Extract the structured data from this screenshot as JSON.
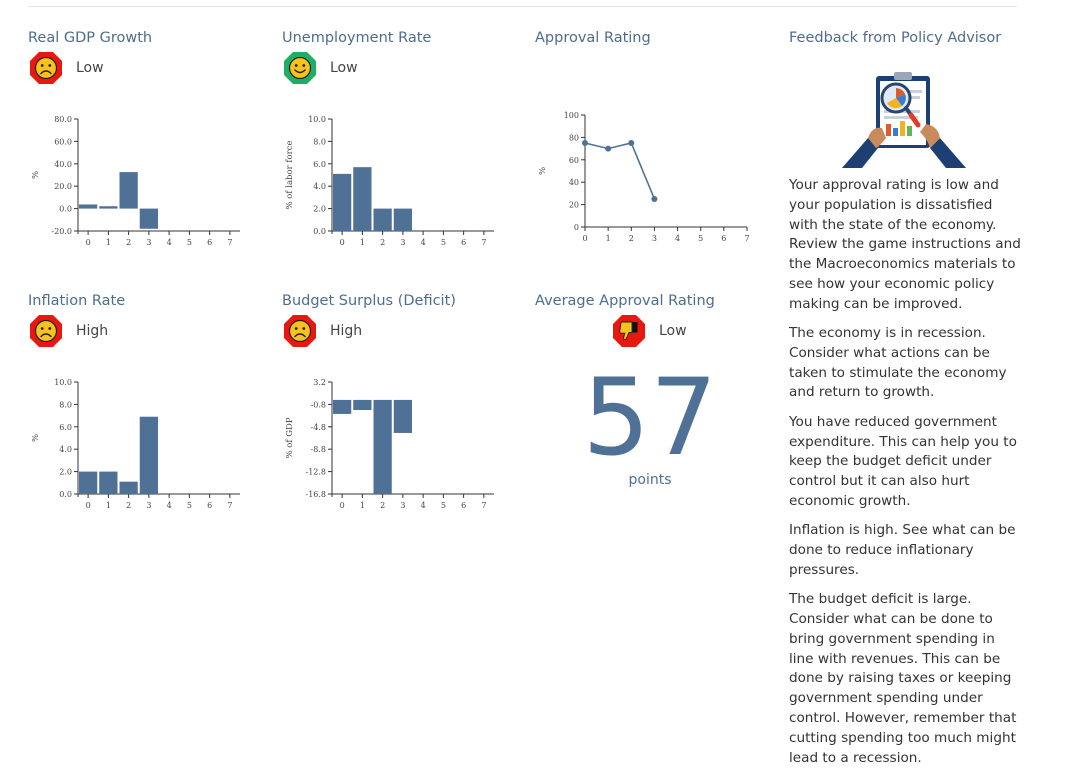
{
  "panels": {
    "gdp": {
      "title": "Real GDP Growth",
      "status": "Low",
      "face": "sad"
    },
    "unemployment": {
      "title": "Unemployment Rate",
      "status": "Low",
      "face": "happy"
    },
    "approval": {
      "title": "Approval Rating"
    },
    "inflation": {
      "title": "Inflation Rate",
      "status": "High",
      "face": "sad"
    },
    "budget": {
      "title": "Budget Surplus (Deficit)",
      "status": "High",
      "face": "sad"
    },
    "avg_approval": {
      "title": "Average Approval Rating",
      "status": "Low",
      "score": "57",
      "unit": "points"
    }
  },
  "feedback": {
    "title": "Feedback from Policy Advisor",
    "paragraphs": [
      "Your approval rating is low and your population is dissatisfied with the state of the economy. Review the game instructions and the Macroeconomics materials to see how your economic policy making can be improved.",
      "The economy is in recession. Consider what actions can be taken to stimulate the economy and return to growth.",
      "You have reduced government expenditure. This can help you to keep the budget deficit under control but it can also hurt economic growth.",
      "Inflation is high. See what can be done to reduce inflationary pressures.",
      "The budget deficit is large. Consider what can be done to bring government spending in line with revenues. This can be done by raising taxes or keeping government spending under control. However, remember that cutting spending too much might lead to a recession."
    ]
  },
  "colors": {
    "bar": "#4f7196",
    "title": "#4d6d8f",
    "sad_bg": "#e8170f",
    "happy_bg": "#1fae66",
    "face": "#f7c21b"
  },
  "icons": {
    "sad": "sad-face-icon",
    "happy": "happy-face-icon",
    "thumbs_down": "thumbs-down-icon",
    "advisor": "clipboard-magnifier-illustration"
  },
  "chart_data": [
    {
      "id": "gdp",
      "type": "bar",
      "x": [
        0,
        1,
        2,
        3,
        4,
        5,
        6,
        7
      ],
      "values": [
        3.7,
        2.1,
        32.6,
        -18.0,
        null,
        null,
        null,
        null
      ],
      "ylabel": "%",
      "ylim": [
        -20,
        80
      ],
      "yticks": [
        "80.0",
        "60.0",
        "40.0",
        "20.0",
        "0.0",
        "-20.0"
      ],
      "xticks": [
        "0",
        "1",
        "2",
        "3",
        "4",
        "5",
        "6",
        "7"
      ]
    },
    {
      "id": "unemployment",
      "type": "bar",
      "x": [
        0,
        1,
        2,
        3,
        4,
        5,
        6,
        7
      ],
      "values": [
        5.1,
        5.7,
        2.0,
        2.0,
        null,
        null,
        null,
        null
      ],
      "ylabel": "% of labor force",
      "ylim": [
        0,
        10
      ],
      "yticks": [
        "10.0",
        "8.0",
        "6.0",
        "4.0",
        "2.0",
        "0.0"
      ],
      "xticks": [
        "0",
        "1",
        "2",
        "3",
        "4",
        "5",
        "6",
        "7"
      ]
    },
    {
      "id": "approval",
      "type": "line",
      "x": [
        0,
        1,
        2,
        3
      ],
      "values": [
        75,
        70,
        75,
        25
      ],
      "ylabel": "%",
      "ylim": [
        0,
        100
      ],
      "yticks": [
        "100",
        "80",
        "60",
        "40",
        "20",
        "0"
      ],
      "xticks": [
        "0",
        "1",
        "2",
        "3",
        "4",
        "5",
        "6",
        "7"
      ]
    },
    {
      "id": "inflation",
      "type": "bar",
      "x": [
        0,
        1,
        2,
        3,
        4,
        5,
        6,
        7
      ],
      "values": [
        2.0,
        2.0,
        1.1,
        6.9,
        null,
        null,
        null,
        null
      ],
      "ylabel": "%",
      "ylim": [
        0,
        10
      ],
      "yticks": [
        "10.0",
        "8.0",
        "6.0",
        "4.0",
        "2.0",
        "0.0"
      ],
      "xticks": [
        "0",
        "1",
        "2",
        "3",
        "4",
        "5",
        "6",
        "7"
      ]
    },
    {
      "id": "budget",
      "type": "bar",
      "x": [
        0,
        1,
        2,
        3,
        4,
        5,
        6,
        7
      ],
      "values": [
        -2.5,
        -1.8,
        -16.8,
        -5.9,
        null,
        null,
        null,
        null
      ],
      "ylabel": "% of GDP",
      "ylim": [
        -16.8,
        3.2
      ],
      "yticks": [
        "3.2",
        "-0.8",
        "-4.8",
        "-8.8",
        "-12.8",
        "-16.8"
      ],
      "xticks": [
        "0",
        "1",
        "2",
        "3",
        "4",
        "5",
        "6",
        "7"
      ]
    }
  ]
}
